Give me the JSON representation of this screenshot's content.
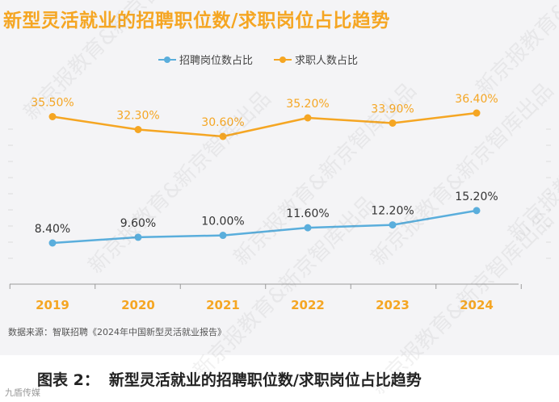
{
  "title": "新型灵活就业的招聘职位数/求职岗位占比趋势",
  "source": "数据来源：智联招聘《2024年中国新型灵活就业报告》",
  "caption": {
    "label": "图表 2：",
    "text": "新型灵活就业的招聘职位数/求职岗位占比趋势"
  },
  "watermark": "新京报教育&新京智库出品",
  "corner_logo": "九盾传媒",
  "colors": {
    "title": "#f5a623",
    "blue": "#5aaedc",
    "orange": "#f5a623"
  },
  "chart_data": {
    "type": "line",
    "title": "新型灵活就业的招聘职位数/求职岗位占比趋势",
    "xlabel": "",
    "ylabel": "",
    "categories": [
      "2019",
      "2020",
      "2021",
      "2022",
      "2023",
      "2024"
    ],
    "series": [
      {
        "name": "招聘岗位数占比",
        "color": "#5aaedc",
        "values": [
          8.4,
          9.6,
          10.0,
          11.6,
          12.2,
          15.2
        ],
        "labels": [
          "8.40%",
          "9.60%",
          "10.00%",
          "11.60%",
          "12.20%",
          "15.20%"
        ]
      },
      {
        "name": "求职人数占比",
        "color": "#f5a623",
        "values": [
          35.5,
          32.3,
          30.6,
          35.2,
          33.9,
          36.4
        ],
        "labels": [
          "35.50%",
          "32.30%",
          "30.60%",
          "35.20%",
          "33.90%",
          "36.40%"
        ]
      }
    ],
    "grid": false,
    "legend": "top-center"
  }
}
